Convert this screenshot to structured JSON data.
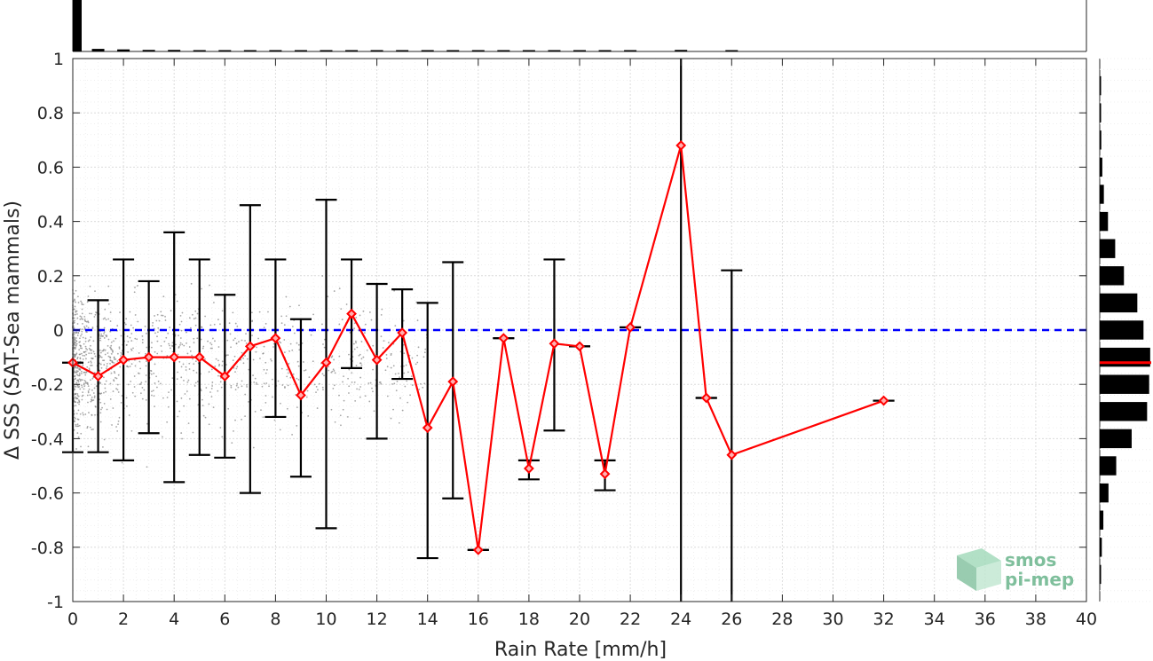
{
  "chart_data": {
    "type": "line",
    "xlabel": "Rain Rate [mm/h]",
    "ylabel": "Δ SSS (SAT-Sea mammals)",
    "xlim": [
      0,
      40
    ],
    "ylim": [
      -1,
      1
    ],
    "xticks": [
      "0",
      "2",
      "4",
      "6",
      "8",
      "10",
      "12",
      "14",
      "16",
      "18",
      "20",
      "22",
      "24",
      "26",
      "28",
      "30",
      "32",
      "34",
      "36",
      "38",
      "40"
    ],
    "yticks": [
      "1",
      "0.8",
      "0.6",
      "0.4",
      "0.2",
      "0",
      "-0.2",
      "-0.4",
      "-0.6",
      "-0.8",
      "-1"
    ],
    "grid": true,
    "zero_line": {
      "y": 0,
      "color": "#0000ff",
      "style": "dashed"
    },
    "series": [
      {
        "color": "#ff0000",
        "x": [
          0,
          1,
          2,
          3,
          4,
          5,
          6,
          7,
          8,
          9,
          10,
          11,
          12,
          13,
          14,
          15,
          16,
          17,
          18,
          19,
          20,
          21,
          22,
          24,
          25,
          26,
          32
        ],
        "y": [
          -0.12,
          -0.17,
          -0.11,
          -0.1,
          -0.1,
          -0.1,
          -0.17,
          -0.06,
          -0.03,
          -0.24,
          -0.12,
          0.06,
          -0.11,
          -0.01,
          -0.36,
          -0.19,
          -0.81,
          -0.03,
          -0.51,
          -0.05,
          -0.06,
          -0.53,
          0.01,
          0.68,
          -0.25,
          -0.46,
          -0.26
        ],
        "err_low": [
          -0.45,
          -0.45,
          -0.48,
          -0.38,
          -0.56,
          -0.46,
          -0.47,
          -0.6,
          -0.32,
          -0.54,
          -0.73,
          -0.14,
          -0.4,
          -0.18,
          -0.84,
          -0.62,
          -0.81,
          -0.03,
          -0.55,
          -0.37,
          -0.06,
          -0.59,
          0.01,
          -1.0,
          -0.25,
          -1.0,
          -0.26
        ],
        "err_high": [
          -0.12,
          0.11,
          0.26,
          0.18,
          0.36,
          0.26,
          0.13,
          0.46,
          0.26,
          0.04,
          0.48,
          0.26,
          0.17,
          0.15,
          0.1,
          0.25,
          -0.81,
          -0.03,
          -0.48,
          0.26,
          -0.06,
          -0.48,
          0.01,
          1.0,
          -0.25,
          0.22,
          -0.26
        ]
      }
    ],
    "scatter_color": "#808080",
    "top_histogram": {
      "color": "#000000",
      "bins": [
        0,
        1,
        2,
        3,
        4,
        5,
        6,
        7,
        8,
        9,
        10,
        11,
        12,
        13,
        14,
        15,
        16,
        17,
        18,
        19,
        20,
        21,
        22,
        24,
        26
      ],
      "counts": [
        1.0,
        0.05,
        0.04,
        0.03,
        0.03,
        0.02,
        0.02,
        0.02,
        0.02,
        0.02,
        0.02,
        0.02,
        0.02,
        0.02,
        0.02,
        0.02,
        0.02,
        0.02,
        0.02,
        0.02,
        0.02,
        0.02,
        0.02,
        0.03,
        0.02
      ]
    },
    "right_histogram": {
      "color": "#000000",
      "mean_line_color": "#ff0000",
      "mean_value": -0.12,
      "bins": [
        0.9,
        0.8,
        0.7,
        0.6,
        0.5,
        0.4,
        0.3,
        0.2,
        0.1,
        0.0,
        -0.1,
        -0.2,
        -0.3,
        -0.4,
        -0.5,
        -0.6,
        -0.7,
        -0.8,
        -0.9
      ],
      "counts": [
        0.02,
        0.02,
        0.03,
        0.05,
        0.08,
        0.16,
        0.3,
        0.47,
        0.73,
        0.85,
        0.98,
        0.96,
        0.92,
        0.62,
        0.32,
        0.17,
        0.07,
        0.04,
        0.02
      ]
    }
  },
  "logo": {
    "line1": "smos",
    "line2": "pi-mep"
  }
}
